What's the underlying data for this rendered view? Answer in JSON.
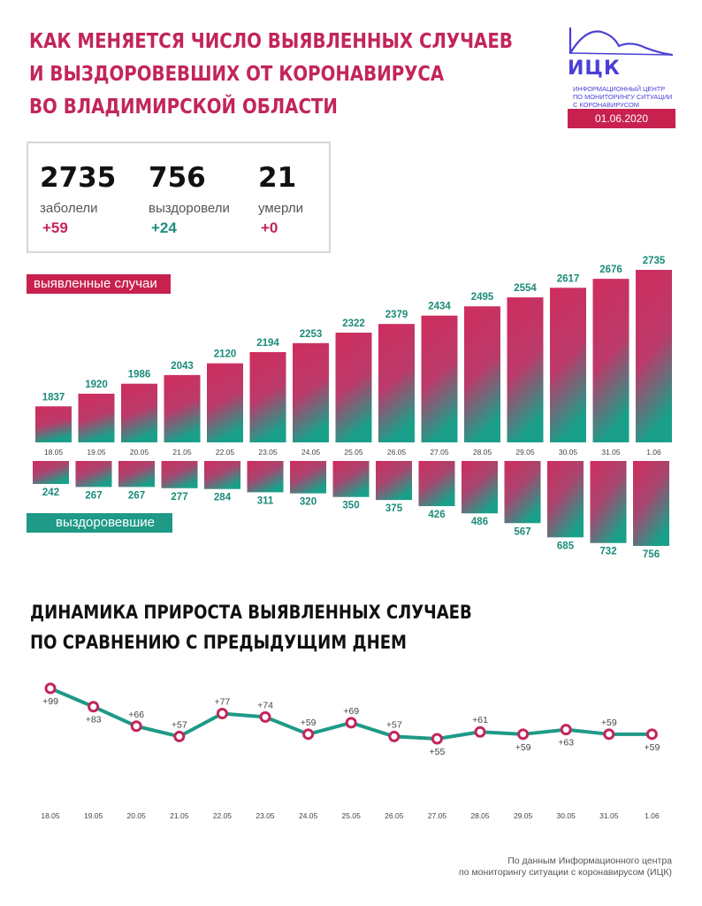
{
  "header": {
    "title_lines": [
      "КАК МЕНЯЕТСЯ ЧИСЛО ВЫЯВЛЕННЫХ СЛУЧАЕВ",
      "И ВЫЗДОРОВЕВШИХ ОТ КОРОНАВИРУСА",
      "ВО ВЛАДИМИРСКОЙ ОБЛАСТИ"
    ]
  },
  "logo": {
    "name": "ИЦК",
    "subtitle_lines": [
      "ИНФОРМАЦИОННЫЙ ЦЕНТР",
      "ПО МОНИТОРИНГУ СИТУАЦИИ",
      "С КОРОНАВИРУСОМ"
    ],
    "date": "01.06.2020",
    "color": "#4b3fd6"
  },
  "stats": [
    {
      "value": "2735",
      "label": "заболели",
      "delta": "+59"
    },
    {
      "value": "756",
      "label": "выздоровели",
      "delta": "+24"
    },
    {
      "value": "21",
      "label": "умерли",
      "delta": "+0"
    }
  ],
  "legend": {
    "cases_label": "выявленные случаи",
    "recovered_label": "выздоровевшие"
  },
  "chart_data": [
    {
      "type": "bar",
      "categories": [
        "18.05",
        "19.05",
        "20.05",
        "21.05",
        "22.05",
        "23.05",
        "24.05",
        "25.05",
        "26.05",
        "27.05",
        "28.05",
        "29.05",
        "30.05",
        "31.05",
        "1.06"
      ],
      "series": [
        {
          "name": "выявленные случаи",
          "values": [
            1837,
            1920,
            1986,
            2043,
            2120,
            2194,
            2253,
            2322,
            2379,
            2434,
            2495,
            2554,
            2617,
            2676,
            2735
          ]
        },
        {
          "name": "выздоровевшие",
          "values": [
            242,
            267,
            267,
            277,
            284,
            311,
            320,
            350,
            375,
            426,
            486,
            567,
            685,
            732,
            756
          ]
        }
      ],
      "colors": {
        "pink": "#d02d5b",
        "teal": "#1e9a87"
      }
    },
    {
      "type": "line",
      "title": "ДИНАМИКА ПРИРОСТА ВЫЯВЛЕННЫХ СЛУЧАЕВ ПО СРАВНЕНИЮ С ПРЕДЫДУЩИМ ДНЕМ",
      "categories": [
        "18.05",
        "19.05",
        "20.05",
        "21.05",
        "22.05",
        "23.05",
        "24.05",
        "25.05",
        "26.05",
        "27.05",
        "28.05",
        "29.05",
        "30.05",
        "31.05",
        "1.06"
      ],
      "values": [
        99,
        83,
        66,
        57,
        77,
        74,
        59,
        69,
        57,
        55,
        61,
        59,
        63,
        59,
        59
      ],
      "labels": [
        "+99",
        "+83",
        "+66",
        "+57",
        "+77",
        "+74",
        "+59",
        "+69",
        "+57",
        "+55",
        "+61",
        "+59",
        "+63",
        "+59",
        "+59"
      ],
      "colors": {
        "line": "#1e9a87",
        "marker": "#c2255c"
      }
    }
  ],
  "line_section": {
    "title_lines": [
      "ДИНАМИКА ПРИРОСТА ВЫЯВЛЕННЫХ СЛУЧАЕВ",
      "ПО СРАВНЕНИЮ С ПРЕДЫДУЩИМ ДНЕМ"
    ]
  },
  "source": {
    "lines": [
      "По данным Информационного центра",
      "по мониторингу ситуации с коронавирусом (ИЦК)"
    ]
  }
}
